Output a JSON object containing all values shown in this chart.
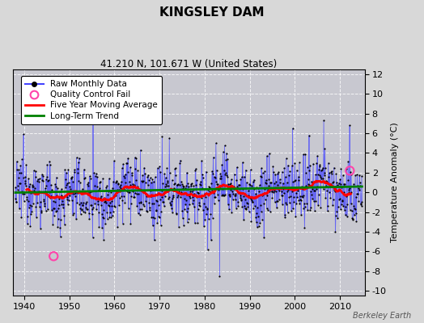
{
  "title": "KINGSLEY DAM",
  "subtitle": "41.210 N, 101.671 W (United States)",
  "ylabel": "Temperature Anomaly (°C)",
  "watermark": "Berkeley Earth",
  "xlim": [
    1937.5,
    2015.5
  ],
  "ylim": [
    -10.5,
    12.5
  ],
  "yticks": [
    -10,
    -8,
    -6,
    -4,
    -2,
    0,
    2,
    4,
    6,
    8,
    10,
    12
  ],
  "xticks": [
    1940,
    1950,
    1960,
    1970,
    1980,
    1990,
    2000,
    2010
  ],
  "start_year": 1938,
  "end_year": 2015,
  "seed": 12345,
  "raw_color": "#4444ff",
  "raw_dot_color": "black",
  "qc_color": "#ff44aa",
  "moving_avg_color": "red",
  "trend_color": "green",
  "background_color": "#d8d8d8",
  "plot_bg_color": "#c8c8d0",
  "grid_color": "white",
  "qc_fail_points": [
    [
      1946.5,
      -6.5
    ],
    [
      2012.2,
      2.2
    ]
  ],
  "title_fontsize": 11,
  "subtitle_fontsize": 8.5,
  "tick_fontsize": 8,
  "legend_fontsize": 7.5
}
